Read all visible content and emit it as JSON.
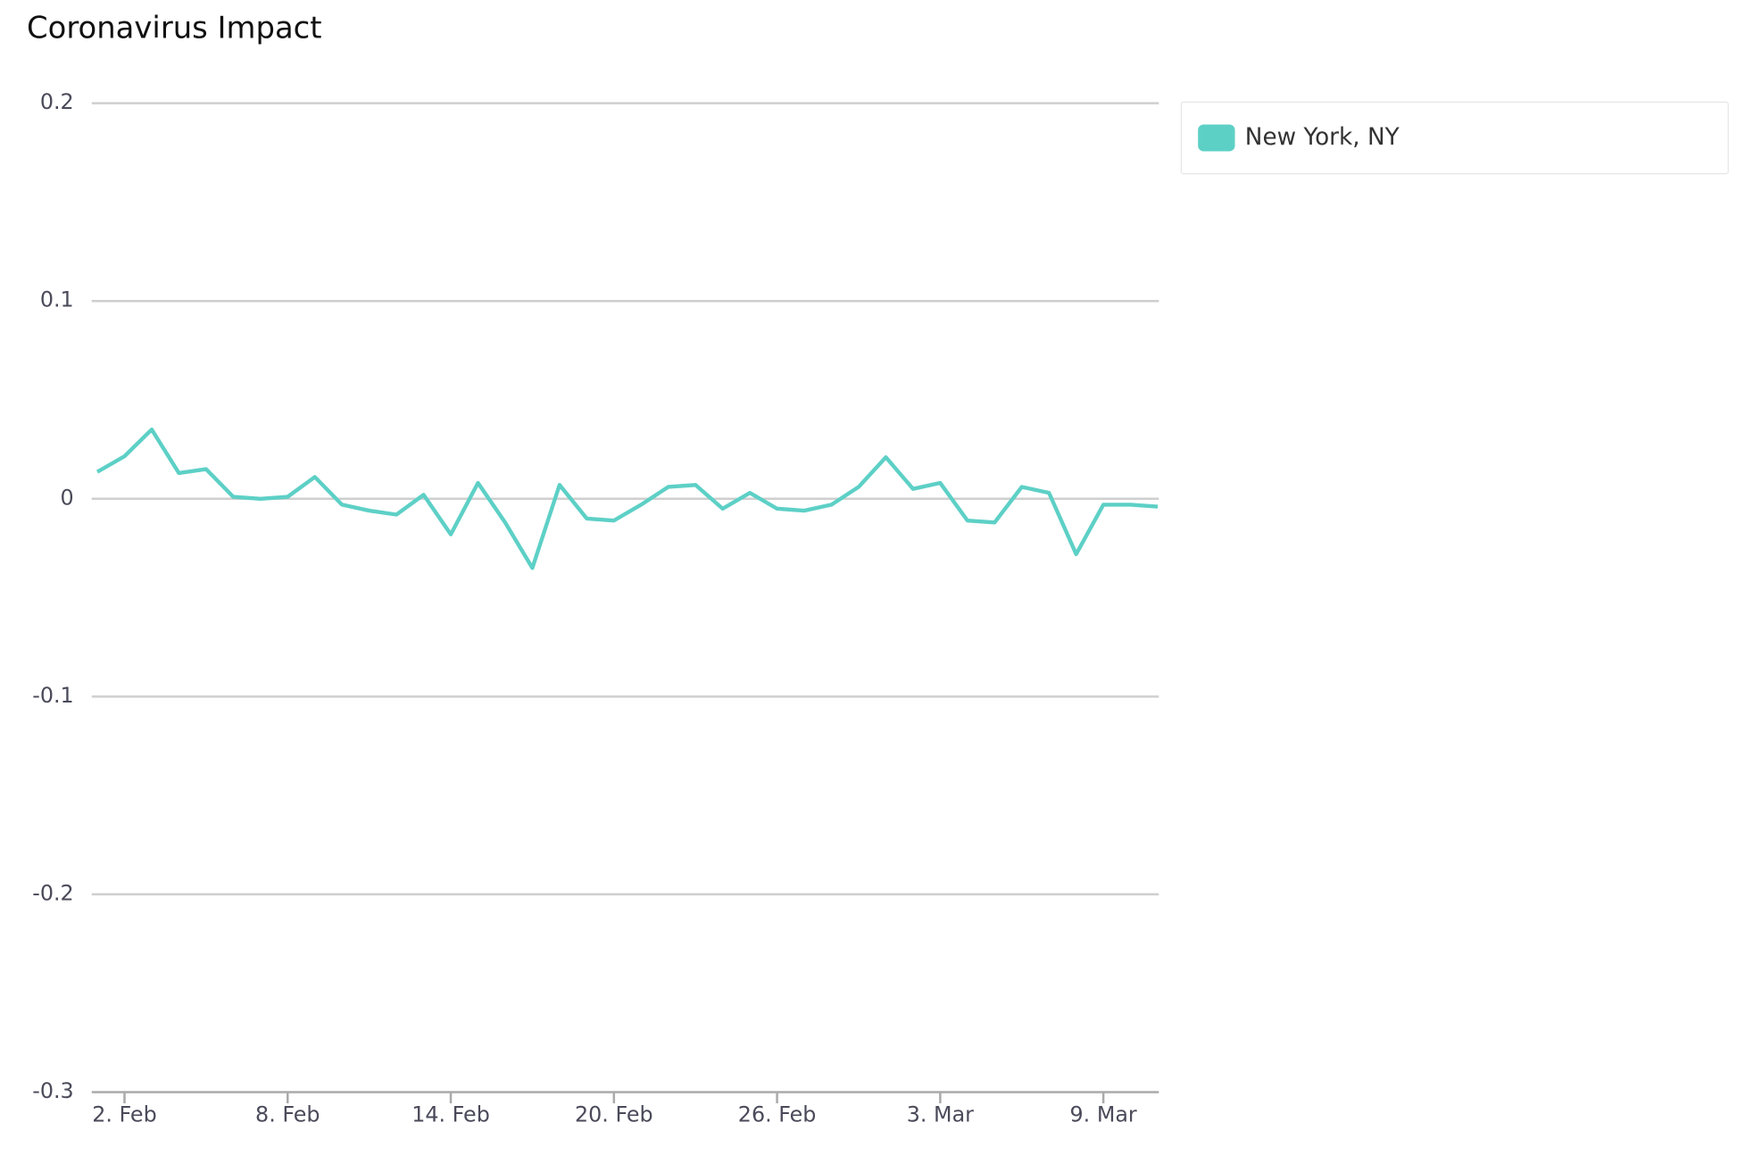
{
  "chart_data": {
    "type": "line",
    "title": "Coronavirus Impact",
    "categories": [
      null,
      "2. Feb",
      null,
      null,
      null,
      null,
      null,
      "8. Feb",
      null,
      null,
      null,
      null,
      null,
      "14. Feb",
      null,
      null,
      null,
      null,
      null,
      "20. Feb",
      null,
      null,
      null,
      null,
      null,
      "26. Feb",
      null,
      null,
      null,
      null,
      null,
      "3. Mar",
      null,
      null,
      null,
      null,
      null,
      "9. Mar",
      null,
      null
    ],
    "series": [
      {
        "name": "New York, NY",
        "color": "#5dd0c6",
        "values": [
          0.0136,
          0.0215,
          0.035,
          0.013,
          0.015,
          0.001,
          0,
          0.001,
          0.011,
          -0.003,
          -0.006,
          -0.008,
          0.002,
          -0.018,
          0.008,
          -0.012,
          -0.035,
          0.007,
          -0.01,
          -0.011,
          -0.003,
          0.006,
          0.007,
          -0.005,
          0.003,
          -0.005,
          -0.006,
          -0.003,
          0.006,
          0.021,
          0.005,
          0.008,
          -0.011,
          -0.012,
          0.006,
          0.003,
          -0.028,
          -0.003,
          -0.003,
          -0.004
        ]
      }
    ],
    "ylim": [
      -0.3,
      0.2
    ],
    "yticks": [
      -0.3,
      -0.2,
      -0.1,
      0,
      0.1,
      0.2
    ],
    "grid": true,
    "legend": "right"
  }
}
